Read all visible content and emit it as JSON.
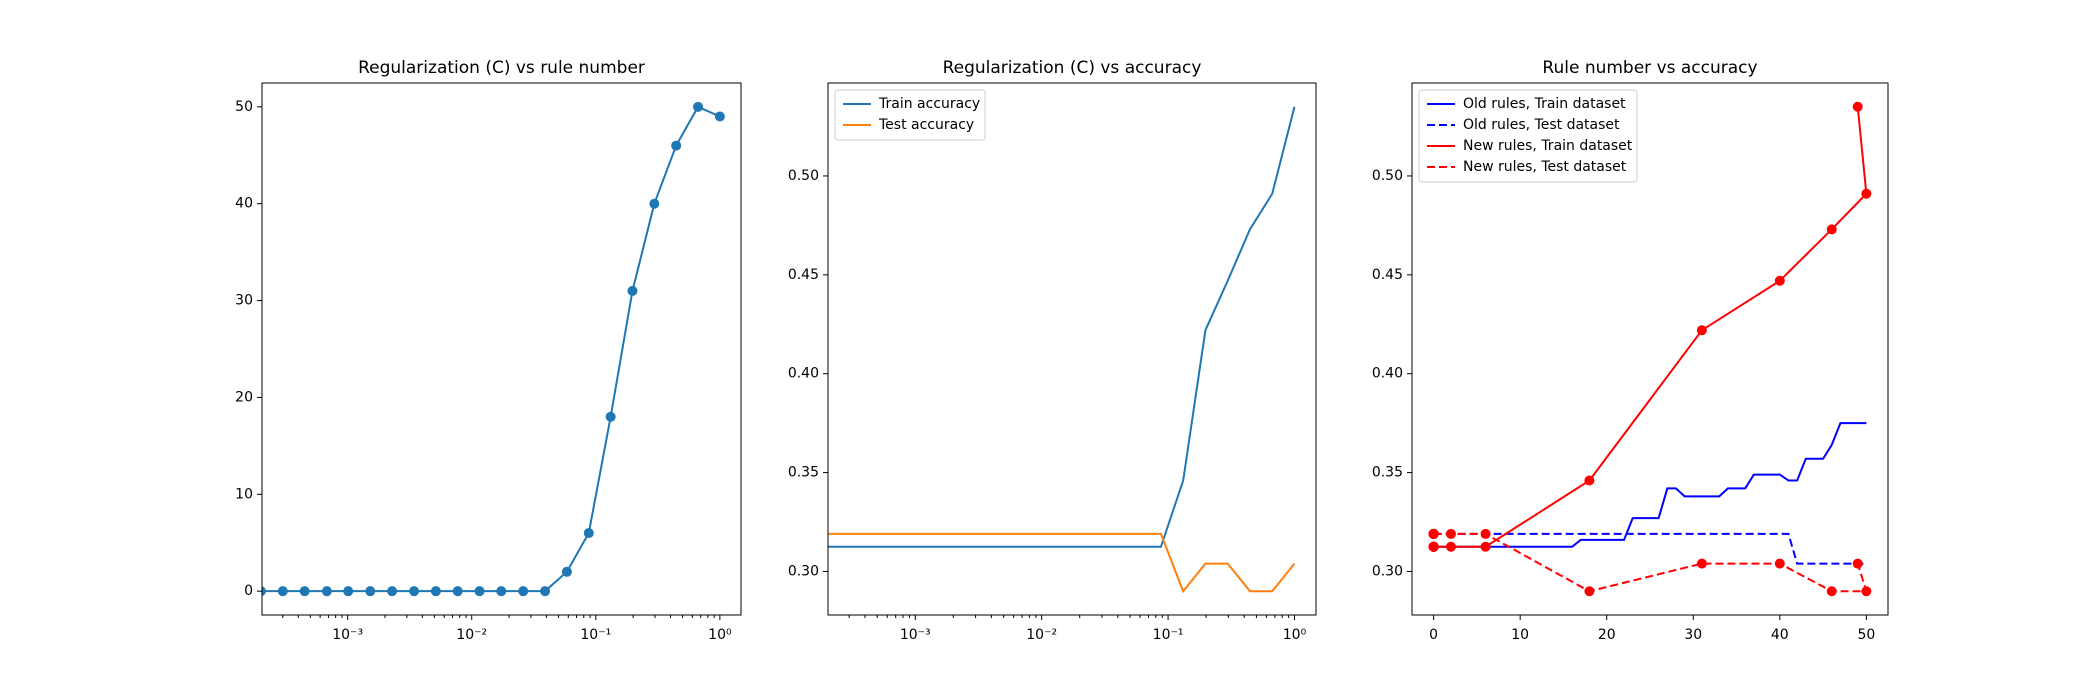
{
  "chart_data": [
    {
      "type": "line",
      "title": "Regularization (C) vs rule number",
      "xscale": "log",
      "x": [
        0.0002,
        0.0003,
        0.00045,
        0.00068,
        0.00101,
        0.00152,
        0.00228,
        0.00343,
        0.00514,
        0.00771,
        0.01156,
        0.0173,
        0.026,
        0.039,
        0.0585,
        0.0878,
        0.1317,
        0.1975,
        0.2963,
        0.4444,
        0.6667,
        1
      ],
      "series": [
        {
          "color": "#1f77b4",
          "marker": true,
          "dashed": false,
          "values": [
            0,
            0,
            0,
            0,
            0,
            0,
            0,
            0,
            0,
            0,
            0,
            0,
            0,
            0,
            2,
            6,
            18,
            31,
            40,
            46,
            50,
            49
          ]
        }
      ],
      "xlim": [
        0.000204,
        1.48
      ],
      "ylim": [
        -2.46,
        52.46
      ],
      "xticks": [
        {
          "value": 0.001,
          "label": "10⁻³"
        },
        {
          "value": 0.01,
          "label": "10⁻²"
        },
        {
          "value": 0.1,
          "label": "10⁻¹"
        },
        {
          "value": 1,
          "label": "10⁰"
        }
      ],
      "yticks": [
        0,
        10,
        20,
        30,
        40,
        50
      ]
    },
    {
      "type": "line",
      "title": "Regularization (C) vs accuracy",
      "xscale": "log",
      "legend": "upper left",
      "x": [
        0.0002,
        0.0003,
        0.00045,
        0.00068,
        0.00101,
        0.00152,
        0.00228,
        0.00343,
        0.00514,
        0.00771,
        0.01156,
        0.0173,
        0.026,
        0.039,
        0.0585,
        0.0878,
        0.1317,
        0.1975,
        0.2963,
        0.4444,
        0.6667,
        1
      ],
      "series": [
        {
          "name": "Train accuracy",
          "color": "#1f77b4",
          "marker": false,
          "dashed": false,
          "values": [
            0.3125,
            0.3125,
            0.3125,
            0.3125,
            0.3125,
            0.3125,
            0.3125,
            0.3125,
            0.3125,
            0.3125,
            0.3125,
            0.3125,
            0.3125,
            0.3125,
            0.3125,
            0.3125,
            0.346,
            0.422,
            0.447,
            0.473,
            0.491,
            0.535
          ]
        },
        {
          "name": "Test accuracy",
          "color": "#ff7f0e",
          "marker": false,
          "dashed": false,
          "values": [
            0.319,
            0.319,
            0.319,
            0.319,
            0.319,
            0.319,
            0.319,
            0.319,
            0.319,
            0.319,
            0.319,
            0.319,
            0.319,
            0.319,
            0.319,
            0.319,
            0.29,
            0.304,
            0.304,
            0.29,
            0.29,
            0.304
          ]
        }
      ],
      "xlim": [
        0.000204,
        1.48
      ],
      "ylim": [
        0.278,
        0.547
      ],
      "xticks": [
        {
          "value": 0.001,
          "label": "10⁻³"
        },
        {
          "value": 0.01,
          "label": "10⁻²"
        },
        {
          "value": 0.1,
          "label": "10⁻¹"
        },
        {
          "value": 1,
          "label": "10⁰"
        }
      ],
      "yticks": [
        {
          "value": 0.3,
          "label": "0.30"
        },
        0.35,
        {
          "value": 0.4,
          "label": "0.40"
        },
        0.45,
        {
          "value": 0.5,
          "label": "0.50"
        }
      ]
    },
    {
      "type": "line",
      "title": "Rule number vs accuracy",
      "xscale": "linear",
      "legend": "upper left",
      "series": [
        {
          "name": "Old rules, Train dataset",
          "color": "#0000ff",
          "marker": false,
          "dashed": false,
          "x": [
            0,
            1,
            2,
            3,
            4,
            5,
            6,
            7,
            8,
            9,
            10,
            11,
            12,
            13,
            14,
            15,
            16,
            17,
            18,
            19,
            20,
            21,
            22,
            23,
            24,
            25,
            26,
            27,
            28,
            29,
            30,
            31,
            32,
            33,
            34,
            35,
            36,
            37,
            38,
            39,
            40,
            41,
            42,
            43,
            44,
            45,
            46,
            47,
            48,
            49,
            50
          ],
          "values": [
            0.3125,
            0.3125,
            0.3125,
            0.3125,
            0.3125,
            0.3125,
            0.3125,
            0.3125,
            0.3125,
            0.3125,
            0.3125,
            0.3125,
            0.3125,
            0.3125,
            0.3125,
            0.3125,
            0.3125,
            0.316,
            0.316,
            0.316,
            0.316,
            0.316,
            0.316,
            0.327,
            0.327,
            0.327,
            0.327,
            0.342,
            0.342,
            0.338,
            0.338,
            0.338,
            0.338,
            0.338,
            0.342,
            0.342,
            0.342,
            0.349,
            0.349,
            0.349,
            0.349,
            0.346,
            0.346,
            0.357,
            0.357,
            0.357,
            0.364,
            0.375,
            0.375,
            0.375,
            0.375
          ]
        },
        {
          "name": "Old rules, Test dataset",
          "color": "#0000ff",
          "marker": false,
          "dashed": true,
          "x": [
            0,
            1,
            2,
            3,
            4,
            5,
            6,
            7,
            8,
            9,
            10,
            11,
            12,
            13,
            14,
            15,
            16,
            17,
            18,
            19,
            20,
            21,
            22,
            23,
            24,
            25,
            26,
            27,
            28,
            29,
            30,
            31,
            32,
            33,
            34,
            35,
            36,
            37,
            38,
            39,
            40,
            41,
            42,
            43,
            44,
            45,
            46,
            47,
            48,
            49,
            50
          ],
          "values": [
            0.319,
            0.319,
            0.319,
            0.319,
            0.319,
            0.319,
            0.319,
            0.319,
            0.319,
            0.319,
            0.319,
            0.319,
            0.319,
            0.319,
            0.319,
            0.319,
            0.319,
            0.319,
            0.319,
            0.319,
            0.319,
            0.319,
            0.319,
            0.319,
            0.319,
            0.319,
            0.319,
            0.319,
            0.319,
            0.319,
            0.319,
            0.319,
            0.319,
            0.319,
            0.319,
            0.319,
            0.319,
            0.319,
            0.319,
            0.319,
            0.319,
            0.319,
            0.304,
            0.304,
            0.304,
            0.304,
            0.304,
            0.304,
            0.304,
            0.304,
            0.304
          ]
        },
        {
          "name": "New rules, Train dataset",
          "color": "#ff0000",
          "marker": true,
          "dashed": false,
          "x": [
            0,
            0,
            0,
            0,
            0,
            0,
            0,
            0,
            0,
            0,
            0,
            0,
            0,
            0,
            2,
            6,
            18,
            31,
            40,
            46,
            50,
            49
          ],
          "values": [
            0.3125,
            0.3125,
            0.3125,
            0.3125,
            0.3125,
            0.3125,
            0.3125,
            0.3125,
            0.3125,
            0.3125,
            0.3125,
            0.3125,
            0.3125,
            0.3125,
            0.3125,
            0.3125,
            0.346,
            0.422,
            0.447,
            0.473,
            0.491,
            0.535
          ]
        },
        {
          "name": "New rules, Test dataset",
          "color": "#ff0000",
          "marker": true,
          "dashed": true,
          "x": [
            0,
            0,
            0,
            0,
            0,
            0,
            0,
            0,
            0,
            0,
            0,
            0,
            0,
            0,
            2,
            6,
            18,
            31,
            40,
            46,
            50,
            49
          ],
          "values": [
            0.319,
            0.319,
            0.319,
            0.319,
            0.319,
            0.319,
            0.319,
            0.319,
            0.319,
            0.319,
            0.319,
            0.319,
            0.319,
            0.319,
            0.319,
            0.319,
            0.29,
            0.304,
            0.304,
            0.29,
            0.29,
            0.304
          ]
        }
      ],
      "xlim": [
        -2.5,
        52.5
      ],
      "ylim": [
        0.278,
        0.547
      ],
      "xticks": [
        0,
        10,
        20,
        30,
        40,
        50
      ],
      "yticks": [
        {
          "value": 0.3,
          "label": "0.30"
        },
        0.35,
        {
          "value": 0.4,
          "label": "0.40"
        },
        0.45,
        {
          "value": 0.5,
          "label": "0.50"
        }
      ]
    }
  ]
}
